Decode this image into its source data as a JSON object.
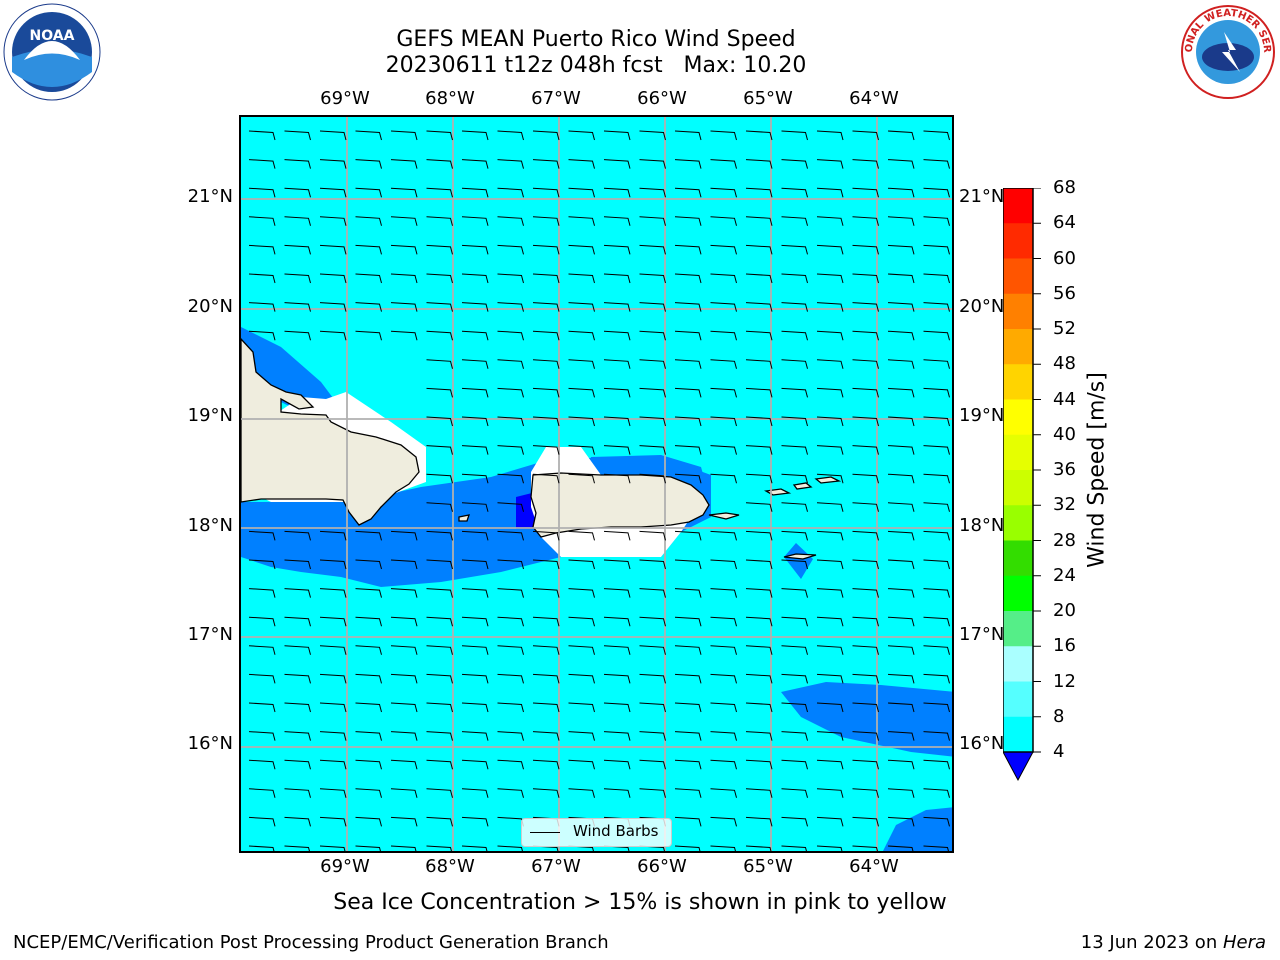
{
  "title": {
    "line1": "GEFS MEAN Puerto Rico Wind Speed",
    "line2": "20230611 t12z 048h fcst   Max: 10.20"
  },
  "map": {
    "lon_labels": [
      "69°W",
      "68°W",
      "67°W",
      "66°W",
      "65°W",
      "64°W"
    ],
    "lat_labels": [
      "21°N",
      "20°N",
      "19°N",
      "18°N",
      "17°N",
      "16°N"
    ],
    "legend": "Wind Barbs"
  },
  "colorbar": {
    "label": "Wind Speed [m/s]",
    "ticks": [
      "68",
      "64",
      "60",
      "56",
      "52",
      "48",
      "44",
      "40",
      "36",
      "32",
      "28",
      "24",
      "20",
      "16",
      "12",
      "8",
      "4"
    ],
    "colors": [
      "#ff0000",
      "#ff2a00",
      "#ff5500",
      "#ff8000",
      "#ffaa00",
      "#ffd400",
      "#ffff00",
      "#e6ff00",
      "#ccff00",
      "#99ff00",
      "#33dd00",
      "#00ff00",
      "#55ee88",
      "#aaffff",
      "#55ffff",
      "#00ffff",
      "#0080ff"
    ],
    "extend_color": "#0000ff"
  },
  "footnote": "Sea Ice Concentration > 15% is shown in pink to yellow",
  "credits": {
    "left": "NCEP/EMC/Verification Post Processing Product Generation Branch",
    "right_date": "13 Jun 2023 on ",
    "right_host": "Hera"
  },
  "logos": {
    "noaa_text": "NOAA",
    "nws_text": "NATIONAL WEATHER SERVICE"
  }
}
